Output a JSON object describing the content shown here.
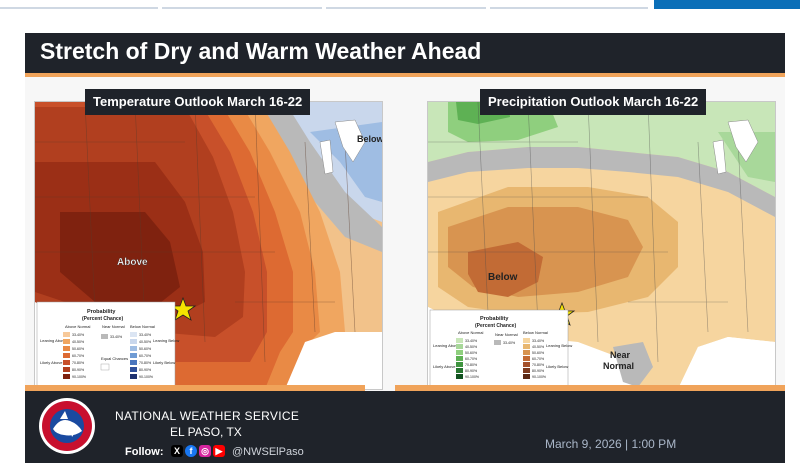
{
  "title": "Stretch of Dry and Warm Weather Ahead",
  "temperature": {
    "label": "Temperature Outlook March 16-22",
    "above_label": "Above",
    "below_label": "Below",
    "legend_title": "Probability",
    "legend_subtitle": "(Percent Chance)",
    "legend_headers": [
      "Above Normal",
      "Near Normal",
      "Below Normal"
    ],
    "legend_sides_left": [
      "Leaning Above",
      "Likely Above"
    ],
    "legend_sides_right": [
      "Leaning Below",
      "Likely Below"
    ],
    "legend_center": "Equal Chances",
    "legend_ranges": [
      "33-40%",
      "40-50%",
      "50-60%",
      "60-70%",
      "70-80%",
      "80-90%",
      "90-100%"
    ]
  },
  "precipitation": {
    "label": "Precipitation Outlook March 16-22",
    "below_label": "Below",
    "near_normal_label": "Near Normal",
    "legend_title": "Probability",
    "legend_subtitle": "(Percent Chance)",
    "legend_headers": [
      "Above Normal",
      "Near Normal",
      "Below Normal"
    ],
    "legend_sides_left": [
      "Leaning Above",
      "Likely Above"
    ],
    "legend_sides_right": [
      "Leaning Below",
      "Likely Below"
    ],
    "legend_ranges": [
      "33-40%",
      "40-50%",
      "50-60%",
      "60-70%",
      "70-80%",
      "80-90%",
      "90-100%"
    ]
  },
  "footer": {
    "org_name": "NATIONAL WEATHER SERVICE",
    "office": "EL PASO, TX",
    "follow_label": "Follow:",
    "handle": "@NWSElPaso",
    "date": "March 9, 2026 | 1:00 PM",
    "logo_text": "NATIONAL WEATHER SERVICE"
  },
  "colors": {
    "accent": "#f0a35a",
    "dark": "#1f232a",
    "nav_active": "#0b6fb8",
    "marker": "#f5e400"
  }
}
